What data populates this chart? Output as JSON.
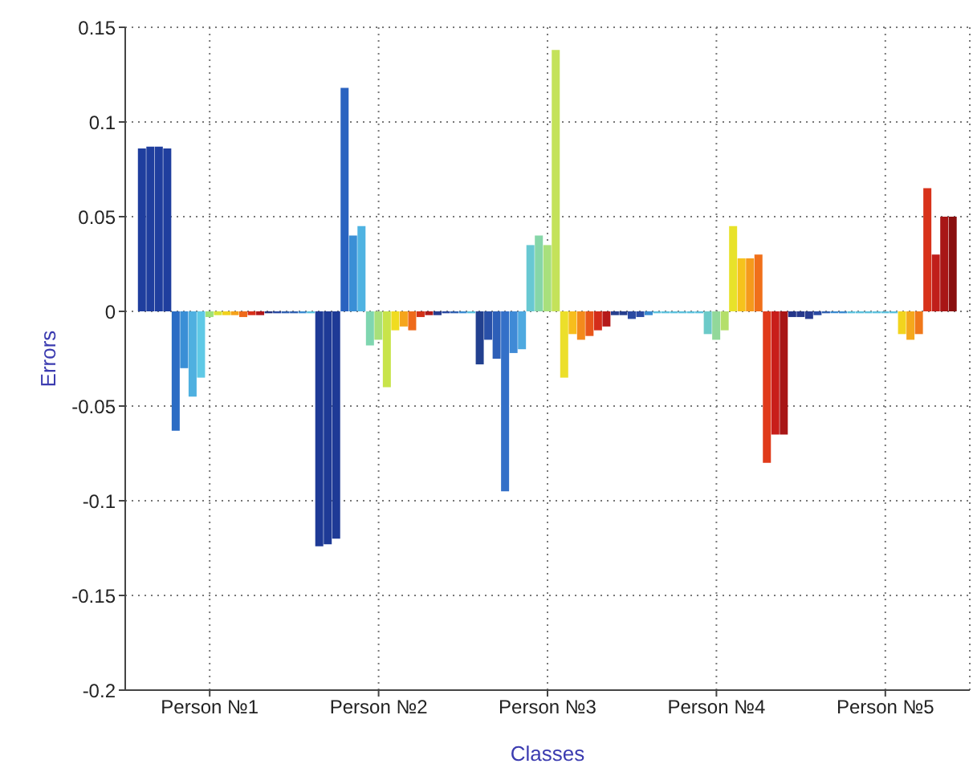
{
  "chart_data": {
    "type": "bar",
    "xlabel": "Classes",
    "ylabel": "Errors",
    "x": [
      0.6,
      0.65,
      0.7,
      0.75,
      0.8,
      0.85,
      0.9,
      0.95,
      1.0,
      1.05,
      1.1,
      1.15,
      1.2,
      1.25,
      1.3,
      1.35,
      1.4,
      1.45,
      1.5,
      1.55,
      1.6,
      1.65,
      1.7,
      1.75,
      1.8,
      1.85,
      1.9,
      1.95,
      2.0,
      2.05,
      2.1,
      2.15,
      2.2,
      2.25,
      2.3,
      2.35,
      2.4,
      2.45,
      2.5,
      2.55,
      2.6,
      2.65,
      2.7,
      2.75,
      2.8,
      2.85,
      2.9,
      2.95,
      3.0,
      3.05,
      3.1,
      3.15,
      3.2,
      3.25,
      3.3,
      3.35,
      3.4,
      3.45,
      3.5,
      3.55,
      3.6,
      3.65,
      3.7,
      3.75,
      3.8,
      3.85,
      3.9,
      3.95,
      4.0,
      4.05,
      4.1,
      4.15,
      4.2,
      4.25,
      4.3,
      4.35,
      4.4,
      4.45,
      4.5,
      4.55,
      4.6,
      4.65,
      4.7,
      4.75,
      4.8,
      4.85,
      4.9,
      4.95,
      5.0,
      5.05,
      5.1,
      5.15,
      5.2,
      5.25,
      5.3,
      5.35,
      5.4
    ],
    "values": [
      0.086,
      0.087,
      0.087,
      0.086,
      -0.063,
      -0.03,
      -0.045,
      -0.035,
      -0.003,
      -0.002,
      -0.002,
      -0.002,
      -0.003,
      -0.002,
      -0.002,
      -0.001,
      -0.001,
      -0.001,
      -0.001,
      -0.001,
      -0.001,
      -0.124,
      -0.123,
      -0.12,
      0.118,
      0.04,
      0.045,
      -0.018,
      -0.015,
      -0.04,
      -0.01,
      -0.008,
      -0.01,
      -0.003,
      -0.002,
      -0.002,
      -0.001,
      -0.001,
      -0.001,
      -0.001,
      -0.028,
      -0.015,
      -0.025,
      -0.095,
      -0.022,
      -0.02,
      0.035,
      0.04,
      0.035,
      0.138,
      -0.035,
      -0.012,
      -0.015,
      -0.013,
      -0.01,
      -0.008,
      -0.002,
      -0.002,
      -0.004,
      -0.003,
      -0.002,
      -0.001,
      -0.001,
      -0.001,
      -0.001,
      -0.001,
      -0.001,
      -0.012,
      -0.015,
      -0.01,
      0.045,
      0.028,
      0.028,
      0.03,
      -0.08,
      -0.065,
      -0.065,
      -0.003,
      -0.003,
      -0.004,
      -0.002,
      -0.001,
      -0.001,
      -0.001,
      -0.001,
      -0.001,
      -0.001,
      -0.001,
      -0.001,
      -0.001,
      -0.012,
      -0.015,
      -0.012,
      0.065,
      0.03,
      0.05,
      0.05
    ],
    "colors": [
      "#1f3e9e",
      "#1f3e9e",
      "#1f3e9e",
      "#1f3e9e",
      "#2b6cc4",
      "#3a8fd6",
      "#4fb0e0",
      "#5fc9e6",
      "#9ee27a",
      "#d8e33a",
      "#f2d21c",
      "#f5a21a",
      "#ee6a1a",
      "#d8301a",
      "#b0171a",
      "#23347f",
      "#2848a0",
      "#3060b0",
      "#3060b0",
      "#3a8ad0",
      "#5cc0dc",
      "#1e3a96",
      "#1e3a96",
      "#1e3a96",
      "#2a63c0",
      "#3a8fd6",
      "#4fb3e2",
      "#7fd6b0",
      "#a8e07a",
      "#c8e44a",
      "#f0dc20",
      "#f5a51c",
      "#ee6a1a",
      "#d23218",
      "#ad1a1a",
      "#273c8e",
      "#2848a0",
      "#3060b0",
      "#3a8ad0",
      "#5cc0dc",
      "#22408f",
      "#2950a8",
      "#2d5fb8",
      "#3470c8",
      "#3f8ad6",
      "#4ea9e0",
      "#68c8d2",
      "#86d6a8",
      "#a8e07c",
      "#c4e25a",
      "#ecdf2a",
      "#f7bd1c",
      "#f38a1c",
      "#e8561a",
      "#d42c1a",
      "#b51a1a",
      "#27408f",
      "#27408f",
      "#2b4aa2",
      "#2b4aa2",
      "#3a8ad0",
      "#5cc0dc",
      "#5cc0dc",
      "#5cc0dc",
      "#5cc0dc",
      "#5cc0dc",
      "#5cc0dc",
      "#6ccac8",
      "#92d89a",
      "#b4df6a",
      "#e8e22a",
      "#f6c21c",
      "#f59a1c",
      "#f0701a",
      "#e03a1a",
      "#c81e1a",
      "#a81616",
      "#24368a",
      "#26388c",
      "#283c90",
      "#2b4aa2",
      "#3060b0",
      "#3a8ad0",
      "#3a8ad0",
      "#5cc0dc",
      "#5cc0dc",
      "#5cc0dc",
      "#5cc0dc",
      "#5cc0dc",
      "#5cc0dc",
      "#f2d41e",
      "#f5a81c",
      "#f0781a",
      "#d8321a",
      "#c01e1a",
      "#a81616",
      "#8a1010"
    ],
    "xlim": [
      0.5,
      5.5
    ],
    "xticks": [
      {
        "value": 1,
        "label": "Person №1"
      },
      {
        "value": 2,
        "label": "Person №2"
      },
      {
        "value": 3,
        "label": "Person №3"
      },
      {
        "value": 4,
        "label": "Person №4"
      },
      {
        "value": 5,
        "label": "Person №5"
      }
    ],
    "ylim": [
      -0.2,
      0.15
    ],
    "yticks": [
      -0.2,
      -0.15,
      -0.1,
      -0.05,
      0,
      0.05,
      0.1,
      0.15
    ],
    "grid": true
  }
}
